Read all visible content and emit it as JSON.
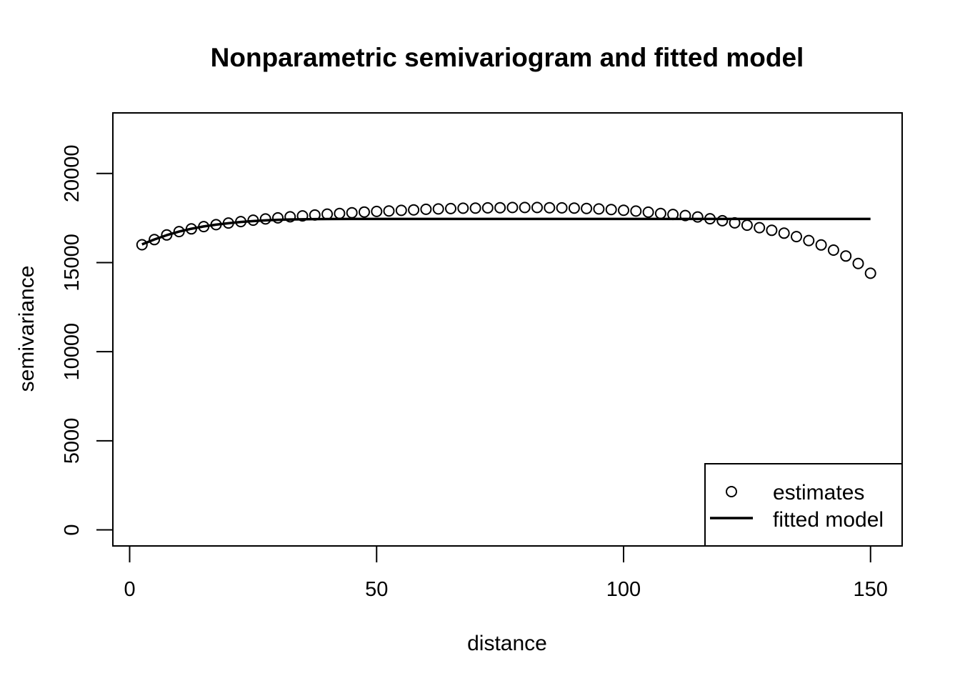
{
  "chart_data": {
    "type": "scatter",
    "title": "Nonparametric semivariogram and fitted model",
    "xlabel": "distance",
    "ylabel": "semivariance",
    "xlim": [
      -3.4,
      156.4
    ],
    "ylim": [
      -900,
      23400
    ],
    "x_ticks": [
      0,
      50,
      100,
      150
    ],
    "y_ticks": [
      0,
      5000,
      10000,
      15000,
      20000
    ],
    "x_tick_labels": [
      "0",
      "50",
      "100",
      "150"
    ],
    "y_tick_labels": [
      "0",
      "5000",
      "10000",
      "15000",
      "20000"
    ],
    "grid": false,
    "legend_position": "bottom-right",
    "series": [
      {
        "name": "estimates",
        "kind": "points",
        "color": "#000000",
        "x": [
          2.5,
          5.0,
          7.5,
          10.0,
          12.5,
          15.0,
          17.5,
          20.0,
          22.5,
          25.0,
          27.5,
          30.0,
          32.5,
          35.0,
          37.5,
          40.0,
          42.5,
          45.0,
          47.5,
          50.0,
          52.5,
          55.0,
          57.5,
          60.0,
          62.5,
          65.0,
          67.5,
          70.0,
          72.5,
          75.0,
          77.5,
          80.0,
          82.5,
          85.0,
          87.5,
          90.0,
          92.5,
          95.0,
          97.5,
          100.0,
          102.5,
          105.0,
          107.5,
          110.0,
          112.5,
          115.0,
          117.5,
          120.0,
          122.5,
          125.0,
          127.5,
          130.0,
          132.5,
          135.0,
          137.5,
          140.0,
          142.5,
          145.0,
          147.5,
          150.0
        ],
        "y": [
          16000,
          16290,
          16550,
          16740,
          16890,
          17020,
          17130,
          17220,
          17300,
          17380,
          17450,
          17510,
          17570,
          17620,
          17670,
          17720,
          17760,
          17800,
          17840,
          17870,
          17900,
          17930,
          17960,
          17990,
          18010,
          18030,
          18050,
          18060,
          18070,
          18080,
          18090,
          18090,
          18090,
          18080,
          18070,
          18060,
          18040,
          18010,
          17980,
          17940,
          17890,
          17830,
          17760,
          17700,
          17640,
          17560,
          17460,
          17350,
          17230,
          17100,
          16960,
          16810,
          16650,
          16460,
          16240,
          15990,
          15700,
          15370,
          14950,
          14400
        ]
      },
      {
        "name": "fitted model",
        "kind": "line",
        "color": "#000000",
        "x": [
          2.5,
          5,
          7.5,
          10,
          12.5,
          15,
          17.5,
          20,
          22.5,
          25,
          27.5,
          30,
          32.5,
          35,
          37.5,
          40,
          45,
          50,
          60,
          80,
          100,
          120,
          150
        ],
        "y": [
          16020,
          16300,
          16540,
          16740,
          16900,
          17030,
          17130,
          17210,
          17280,
          17330,
          17370,
          17400,
          17420,
          17430,
          17440,
          17445,
          17450,
          17450,
          17450,
          17450,
          17450,
          17450,
          17450
        ]
      }
    ]
  }
}
